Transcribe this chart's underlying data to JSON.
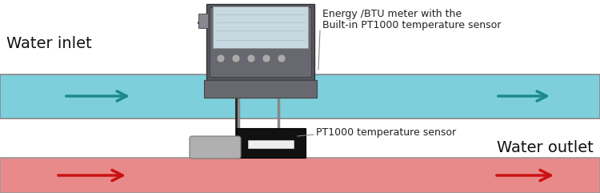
{
  "bg_color": "#ffffff",
  "pipe_top_color": "#7ecfdc",
  "pipe_top_border": "#888888",
  "pipe_bot_color": "#e88a8a",
  "pipe_bot_border": "#999999",
  "arrow_top_color": "#1a8a8a",
  "arrow_bot_color": "#cc1111",
  "water_inlet_text": "Water inlet",
  "water_outlet_text": "Water outlet",
  "label_top_line1": "Energy /BTU meter with the",
  "label_top_line2": "Built-in PT1000 temperature sensor",
  "label_bot": "PT1000 temperature sensor",
  "font_size_pipe_label": 14,
  "font_size_annot": 9
}
